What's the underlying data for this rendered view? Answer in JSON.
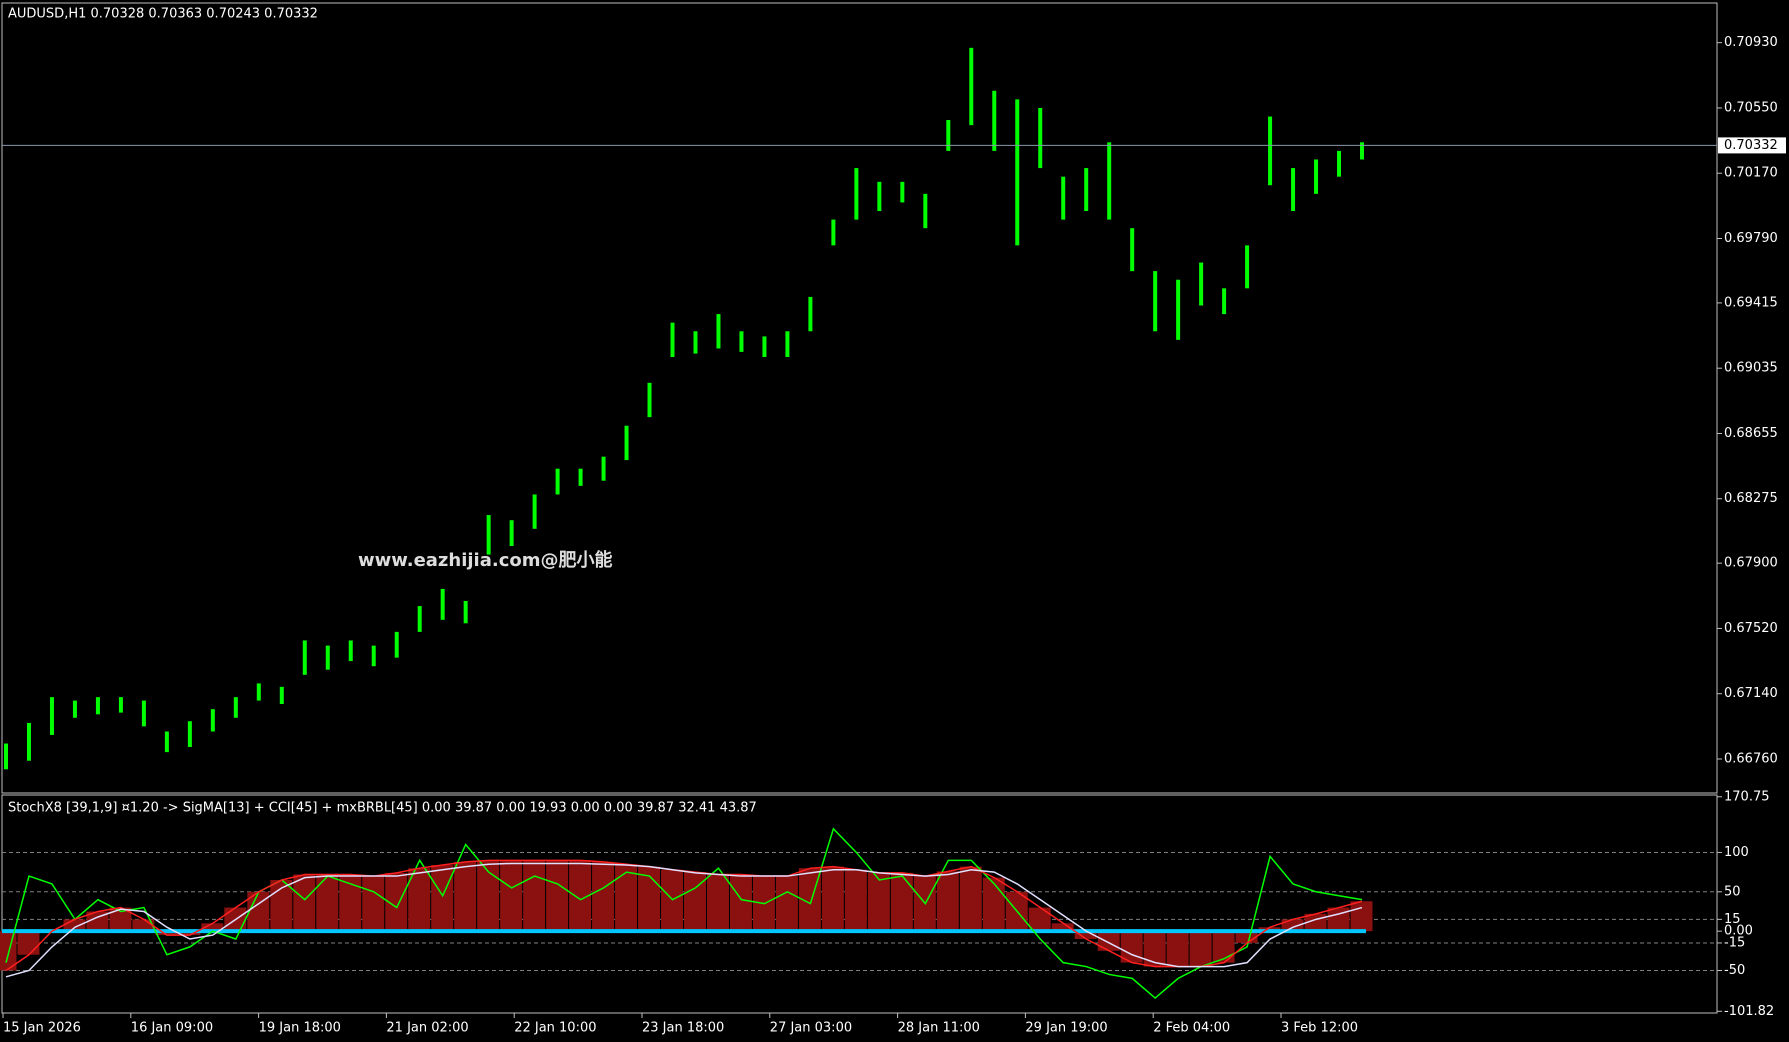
{
  "chart_data": [
    {
      "type": "candle-range",
      "title": "AUDUSD,H1  0.70328 0.70363 0.70243 0.70332",
      "watermark": "www.eazhijia.com@肥小能",
      "color": "#00ff00",
      "high": [
        0.6685,
        0.6697,
        0.6712,
        0.671,
        0.6712,
        0.6712,
        0.671,
        0.6692,
        0.6698,
        0.6705,
        0.6712,
        0.672,
        0.6718,
        0.6745,
        0.6742,
        0.6745,
        0.6742,
        0.675,
        0.6765,
        0.6775,
        0.6768,
        0.6818,
        0.6815,
        0.683,
        0.6845,
        0.6845,
        0.6852,
        0.687,
        0.6895,
        0.693,
        0.6925,
        0.6935,
        0.6925,
        0.6922,
        0.6925,
        0.6945,
        0.699,
        0.702,
        0.7012,
        0.7012,
        0.7005,
        0.7048,
        0.709,
        0.7065,
        0.706,
        0.7055,
        0.7015,
        0.702,
        0.7035,
        0.6985,
        0.696,
        0.6955,
        0.6965,
        0.695,
        0.6975,
        0.705,
        0.702,
        0.7025,
        0.703,
        0.7035
      ],
      "low": [
        0.667,
        0.6675,
        0.669,
        0.67,
        0.6702,
        0.6703,
        0.6695,
        0.668,
        0.6683,
        0.6692,
        0.67,
        0.671,
        0.6708,
        0.6725,
        0.6728,
        0.6733,
        0.673,
        0.6735,
        0.675,
        0.6757,
        0.6755,
        0.6795,
        0.68,
        0.681,
        0.683,
        0.6835,
        0.6838,
        0.685,
        0.6875,
        0.691,
        0.6912,
        0.6915,
        0.6913,
        0.691,
        0.691,
        0.6925,
        0.6975,
        0.699,
        0.6995,
        0.7,
        0.6985,
        0.703,
        0.7045,
        0.703,
        0.6975,
        0.702,
        0.699,
        0.6995,
        0.699,
        0.696,
        0.6925,
        0.692,
        0.694,
        0.6935,
        0.695,
        0.701,
        0.6995,
        0.7005,
        0.7015,
        0.7025
      ],
      "current_price": {
        "value": 0.70332,
        "label": "0.70332"
      },
      "ylim": [
        0.66562,
        0.71161
      ],
      "yticks": [
        {
          "value": 0.7093,
          "label": "0.70930"
        },
        {
          "value": 0.7055,
          "label": "0.70550"
        },
        {
          "value": 0.7017,
          "label": "0.70170"
        },
        {
          "value": 0.6979,
          "label": "0.69790"
        },
        0.69415,
        0.69035,
        0.68655,
        0.68275,
        {
          "value": 0.679,
          "label": "0.67900"
        },
        {
          "value": 0.6752,
          "label": "0.67520"
        },
        {
          "value": 0.6714,
          "label": "0.67140"
        },
        {
          "value": 0.6676,
          "label": "0.66760"
        }
      ]
    },
    {
      "type": "indicator",
      "title": "StochX8 [39,1,9] ¤1.20 -> SigMA[13] + CCI[45] + mxBRBL[45] 0.00 39.87 0.00 19.93 0.00 0.00 39.87 32.41 43.87",
      "series": [
        {
          "color": "#00ff00",
          "values": [
            -40,
            70,
            60,
            15,
            40,
            25,
            30,
            -30,
            -20,
            0,
            -10,
            50,
            65,
            40,
            70,
            60,
            50,
            30,
            90,
            45,
            110,
            75,
            55,
            70,
            60,
            40,
            55,
            75,
            70,
            40,
            55,
            80,
            40,
            35,
            50,
            35,
            130,
            100,
            65,
            70,
            35,
            90,
            90,
            60,
            25,
            -10,
            -40,
            -45,
            -55,
            -60,
            -85,
            -60,
            -45,
            -35,
            -20,
            95,
            60,
            50,
            45,
            40
          ]
        },
        {
          "color": "#ff2020",
          "values": [
            -50,
            -30,
            0,
            15,
            25,
            30,
            15,
            -5,
            -5,
            10,
            30,
            50,
            65,
            72,
            72,
            72,
            70,
            74,
            80,
            84,
            88,
            90,
            90,
            90,
            90,
            90,
            88,
            85,
            82,
            78,
            75,
            72,
            72,
            70,
            70,
            80,
            82,
            78,
            74,
            74,
            70,
            76,
            82,
            68,
            50,
            30,
            10,
            -10,
            -25,
            -40,
            -45,
            -45,
            -45,
            -40,
            -15,
            5,
            15,
            22,
            30,
            38
          ]
        },
        {
          "color": "#e0e0ff",
          "values": [
            -58,
            -50,
            -20,
            5,
            18,
            28,
            25,
            5,
            -10,
            -5,
            15,
            35,
            55,
            68,
            70,
            70,
            70,
            70,
            74,
            78,
            82,
            85,
            86,
            86,
            86,
            86,
            85,
            84,
            82,
            78,
            74,
            72,
            70,
            70,
            70,
            74,
            78,
            78,
            74,
            72,
            70,
            72,
            78,
            75,
            60,
            40,
            20,
            0,
            -15,
            -30,
            -40,
            -45,
            -45,
            -45,
            -40,
            -10,
            5,
            15,
            22,
            30
          ]
        }
      ],
      "hist_color": "#8b1010",
      "baseline_color": "#00c8ff",
      "ylim": [
        -104,
        173
      ],
      "yticks": [
        170.75,
        100,
        50,
        15,
        {
          "value": 0,
          "label": "0.00"
        },
        -15,
        -50,
        -101.82
      ]
    }
  ],
  "xlabels": [
    "15 Jan 2026",
    "16 Jan 09:00",
    "19 Jan 18:00",
    "21 Jan 02:00",
    "22 Jan 10:00",
    "23 Jan 18:00",
    "27 Jan 03:00",
    "28 Jan 11:00",
    "29 Jan 19:00",
    "2 Feb 04:00",
    "3 Feb 12:00"
  ]
}
